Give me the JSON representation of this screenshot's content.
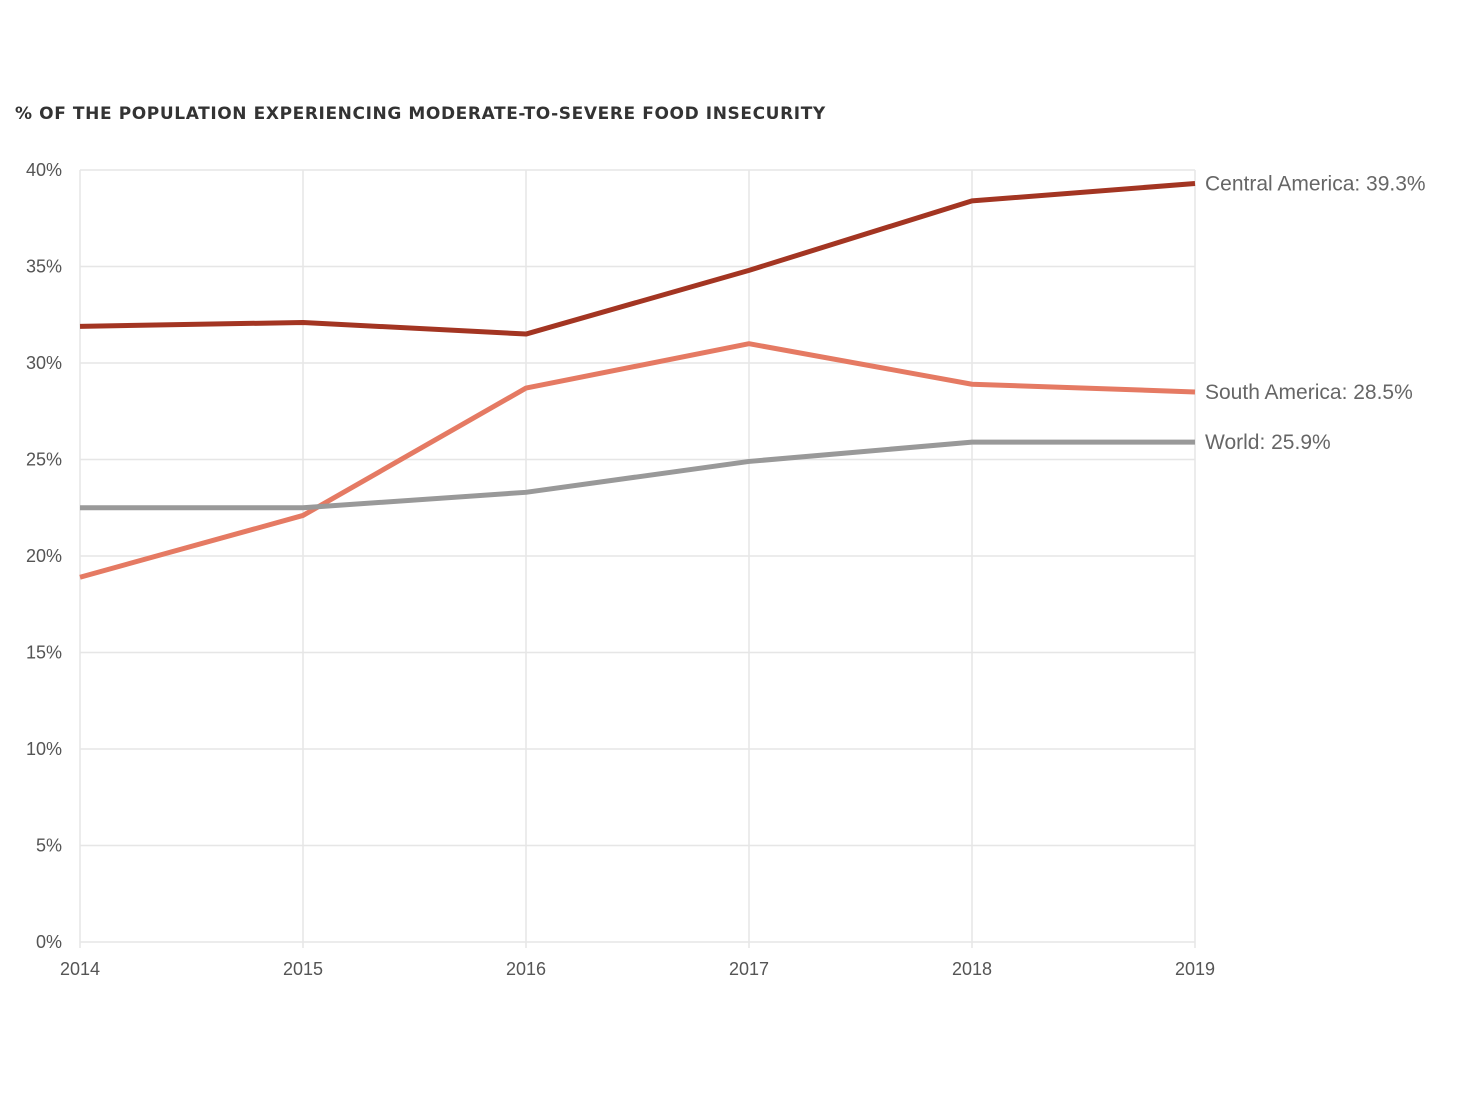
{
  "chart_data": {
    "type": "line",
    "title": "% OF THE POPULATION EXPERIENCING MODERATE-TO-SEVERE FOOD INSECURITY",
    "x": [
      2014,
      2015,
      2016,
      2017,
      2018,
      2019
    ],
    "x_tick_labels": [
      "2014",
      "2015",
      "2016",
      "2017",
      "2018",
      "2019"
    ],
    "ylim": [
      0,
      40
    ],
    "y_ticks": [
      0,
      5,
      10,
      15,
      20,
      25,
      30,
      35,
      40
    ],
    "y_tick_labels": [
      "0%",
      "5%",
      "10%",
      "15%",
      "20%",
      "25%",
      "30%",
      "35%",
      "40%"
    ],
    "grid": true,
    "series": [
      {
        "name": "Central America",
        "end_label": "Central America: 39.3%",
        "color": "#a33522",
        "values": [
          31.9,
          32.1,
          31.5,
          34.8,
          38.4,
          39.3
        ]
      },
      {
        "name": "South America",
        "end_label": "South America: 28.5%",
        "color": "#e57a63",
        "values": [
          18.9,
          22.1,
          28.7,
          31.0,
          28.9,
          28.5
        ]
      },
      {
        "name": "World",
        "end_label": "World: 25.9%",
        "color": "#999999",
        "values": [
          22.5,
          22.5,
          23.3,
          24.9,
          25.9,
          25.9
        ]
      }
    ]
  }
}
